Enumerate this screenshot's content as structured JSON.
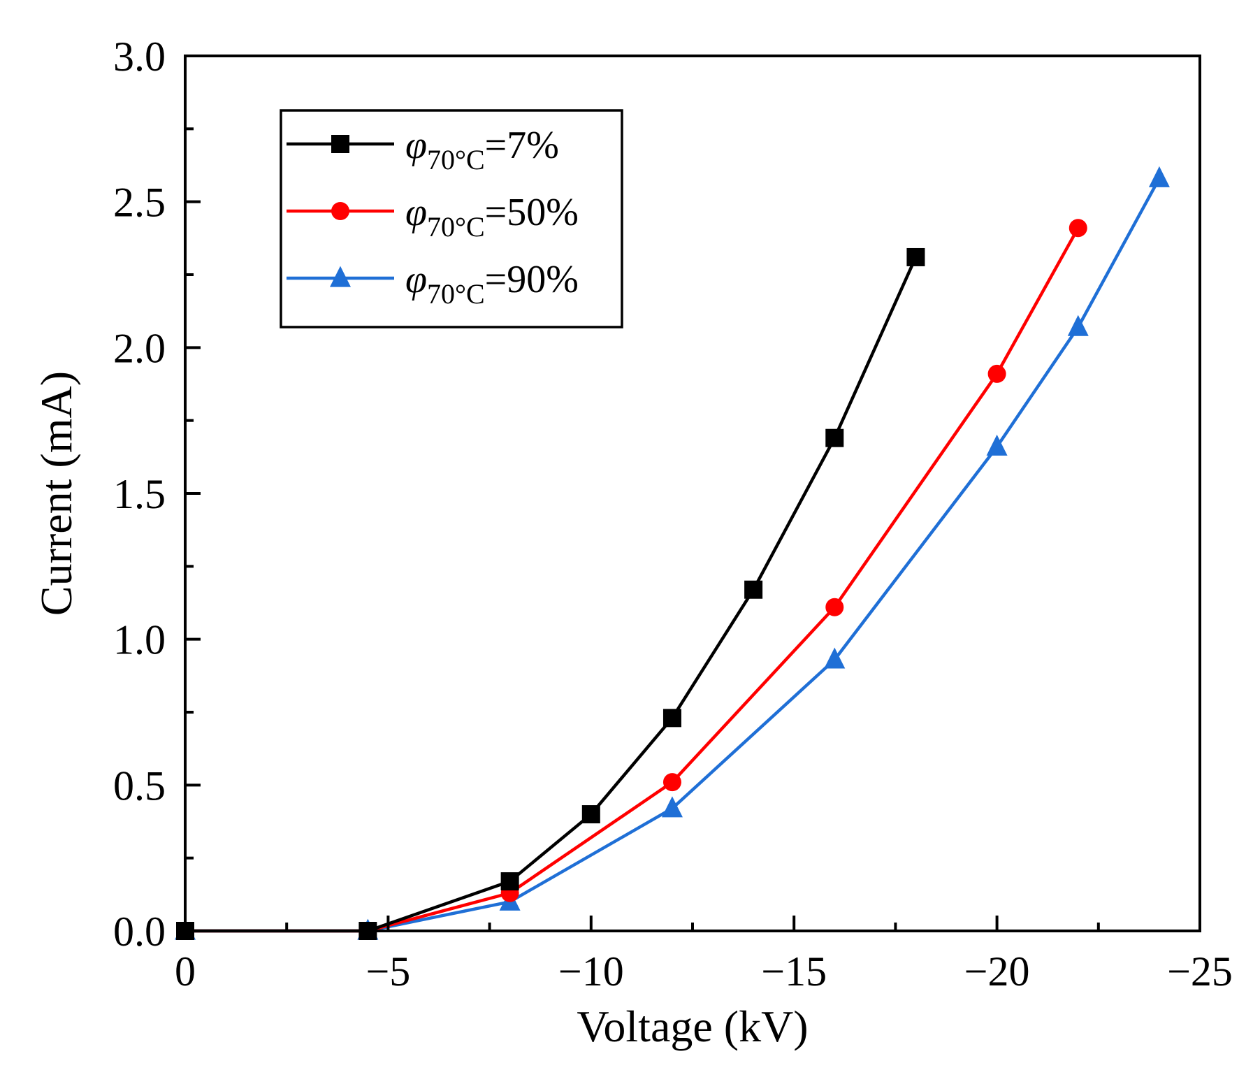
{
  "chart_data": {
    "type": "line",
    "title": "",
    "xlabel": "Voltage (kV)",
    "ylabel": "Current (mA)",
    "xlim": [
      0,
      -25
    ],
    "ylim": [
      0,
      3.0
    ],
    "x_ticks": [
      0,
      -5,
      -10,
      -15,
      -20,
      -25
    ],
    "x_tick_labels": [
      "0",
      "−5",
      "−10",
      "−15",
      "−20",
      "−25"
    ],
    "y_ticks": [
      0.0,
      0.5,
      1.0,
      1.5,
      2.0,
      2.5,
      3.0
    ],
    "y_tick_labels": [
      "0.0",
      "0.5",
      "1.0",
      "1.5",
      "2.0",
      "2.5",
      "3.0"
    ],
    "grid": false,
    "legend_position": "top-left",
    "series": [
      {
        "name": "φ70°C=7%",
        "legend_symbol": "φ",
        "legend_subscript": "70°C",
        "legend_value": "=7%",
        "marker": "square",
        "color": "#000000",
        "x": [
          0,
          -4.5,
          -8,
          -10,
          -12,
          -14,
          -16,
          -18
        ],
        "y": [
          0.0,
          0.0,
          0.17,
          0.4,
          0.73,
          1.17,
          1.69,
          2.31
        ]
      },
      {
        "name": "φ70°C=50%",
        "legend_symbol": "φ",
        "legend_subscript": "70°C",
        "legend_value": "=50%",
        "marker": "circle",
        "color": "#ff0000",
        "x": [
          0,
          -4.5,
          -8,
          -12,
          -16,
          -20,
          -22
        ],
        "y": [
          0.0,
          0.0,
          0.13,
          0.51,
          1.11,
          1.91,
          2.41
        ]
      },
      {
        "name": "φ70°C=90%",
        "legend_symbol": "φ",
        "legend_subscript": "70°C",
        "legend_value": "=90%",
        "marker": "triangle",
        "color": "#1f6fd6",
        "x": [
          0,
          -4.5,
          -8,
          -12,
          -16,
          -20,
          -22,
          -24
        ],
        "y": [
          0.0,
          0.0,
          0.1,
          0.42,
          0.93,
          1.66,
          2.07,
          2.58
        ]
      }
    ]
  }
}
